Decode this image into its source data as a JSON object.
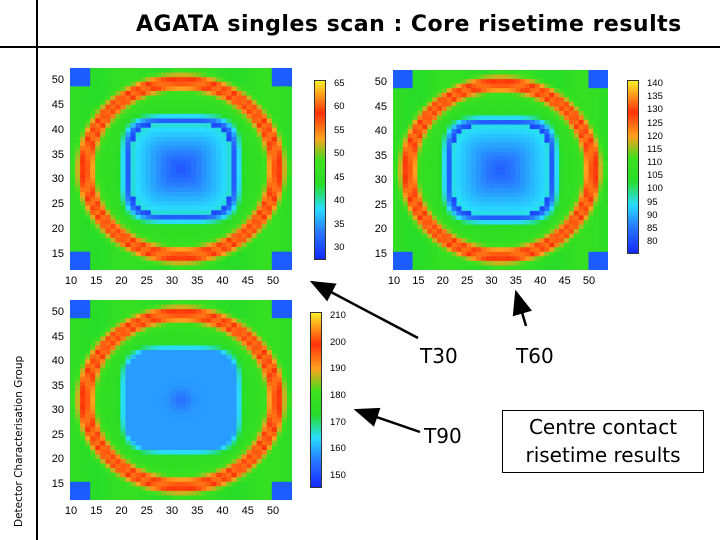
{
  "slide": {
    "title": "AGATA singles scan : Core risetime results",
    "sidebar": "Detector Characterisation Group"
  },
  "maps": [
    {
      "name": "T30",
      "y_ticks": [
        "50",
        "45",
        "40",
        "35",
        "30",
        "25",
        "20",
        "15"
      ],
      "x_ticks": [
        "10",
        "15",
        "20",
        "25",
        "30",
        "35",
        "40",
        "45",
        "50"
      ],
      "colorbar_ticks": [
        "65",
        "60",
        "55",
        "50",
        "45",
        "40",
        "35",
        "30"
      ]
    },
    {
      "name": "T60",
      "y_ticks": [
        "50",
        "45",
        "40",
        "35",
        "30",
        "25",
        "20",
        "15"
      ],
      "x_ticks": [
        "10",
        "15",
        "20",
        "25",
        "30",
        "35",
        "40",
        "45",
        "50"
      ],
      "colorbar_ticks": [
        "140",
        "135",
        "130",
        "125",
        "120",
        "115",
        "110",
        "105",
        "100",
        "95",
        "90",
        "85",
        "80"
      ]
    },
    {
      "name": "T90",
      "y_ticks": [
        "50",
        "45",
        "40",
        "35",
        "30",
        "25",
        "20",
        "15"
      ],
      "x_ticks": [
        "10",
        "15",
        "20",
        "25",
        "30",
        "35",
        "40",
        "45",
        "50"
      ],
      "colorbar_ticks": [
        "210",
        "200",
        "190",
        "180",
        "170",
        "160",
        "150"
      ]
    }
  ],
  "labels": {
    "t30": "T30",
    "t60": "T60",
    "t90": "T90",
    "note_line1": "Centre contact",
    "note_line2": "risetime results"
  },
  "colors": {
    "map_high": "#ff2a0a",
    "map_mid": "#33dd22",
    "map_low": "#1a3cff",
    "background_corner": "#1d5cff"
  }
}
